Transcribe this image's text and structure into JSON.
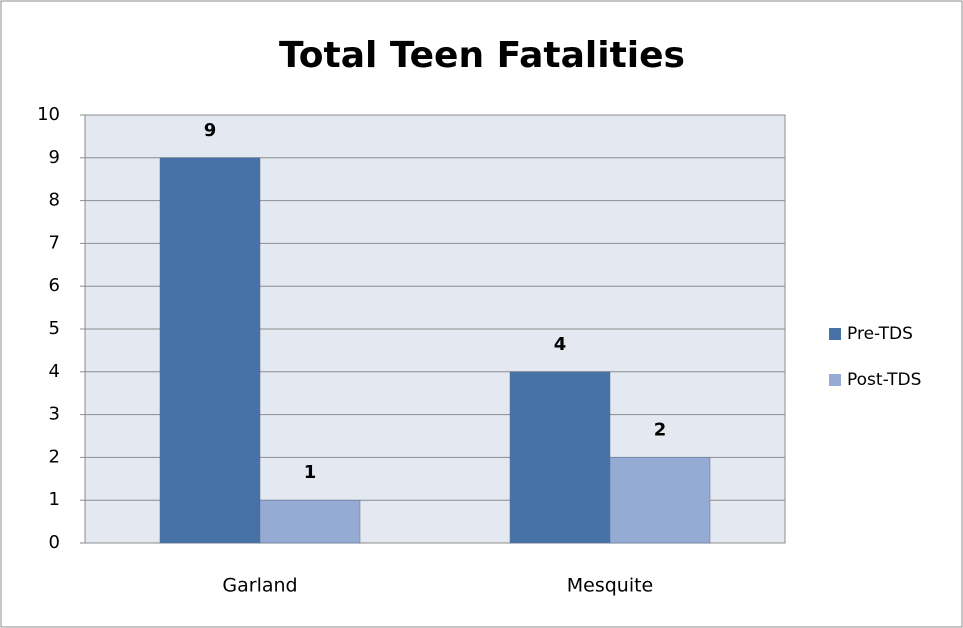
{
  "chart_data": {
    "type": "bar",
    "title": "Total Teen Fatalities",
    "categories": [
      "Garland",
      "Mesquite"
    ],
    "series": [
      {
        "name": "Pre-TDS",
        "color": "#4672a8",
        "values": [
          9,
          4
        ]
      },
      {
        "name": "Post-TDS",
        "color": "#95abd3",
        "values": [
          1,
          2
        ]
      }
    ],
    "ylim": [
      0,
      10
    ],
    "yticks": [
      0,
      1,
      2,
      3,
      4,
      5,
      6,
      7,
      8,
      9,
      10
    ],
    "grid": true,
    "legend": "right"
  }
}
